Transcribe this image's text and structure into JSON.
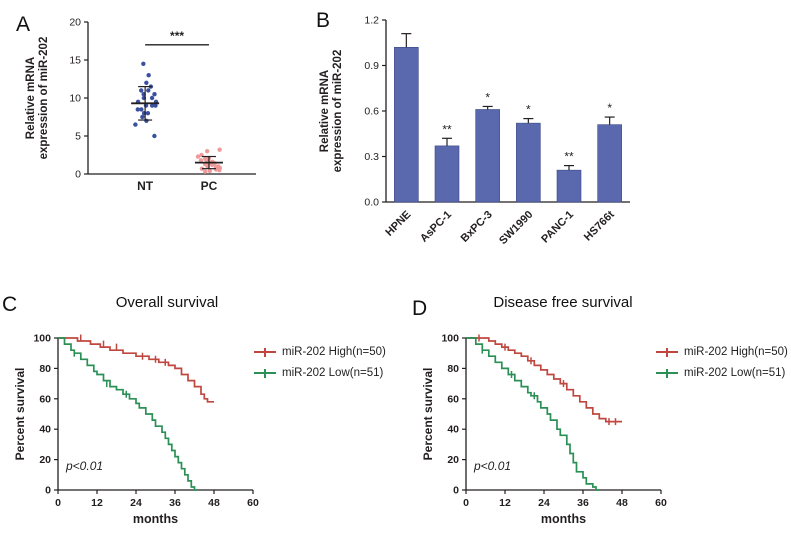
{
  "panels": {
    "a": "A",
    "b": "B",
    "c": "C",
    "d": "D"
  },
  "colors": {
    "axis": "#231f20"
  },
  "chart_data": [
    {
      "id": "panel_a",
      "type": "scatter",
      "ylabel_lines": [
        "Relative mRNA",
        "expression of miR-202"
      ],
      "ylim": [
        0,
        20
      ],
      "yticks": [
        0,
        5,
        10,
        15,
        20
      ],
      "groups": [
        {
          "name": "NT",
          "color": "#3a50a0",
          "mean": 9.3,
          "sd": 2.2,
          "values": [
            5,
            6.5,
            7,
            7.5,
            8,
            8,
            8.5,
            8.5,
            9,
            9,
            9,
            9.5,
            9.5,
            10,
            10,
            10.5,
            10.5,
            11,
            11,
            11.5,
            12,
            13,
            14.5
          ]
        },
        {
          "name": "PC",
          "color": "#ef9a9a",
          "mean": 1.5,
          "sd": 0.8,
          "values": [
            0.3,
            0.4,
            0.5,
            0.6,
            0.7,
            0.8,
            0.9,
            1,
            1,
            1.1,
            1.2,
            1.3,
            1.4,
            1.5,
            1.6,
            1.7,
            1.8,
            2,
            2.1,
            2.3,
            2.5,
            3,
            3.2
          ]
        }
      ],
      "significance": {
        "label": "***",
        "y": 17
      }
    },
    {
      "id": "panel_b",
      "type": "bar",
      "ylabel_lines": [
        "Relative mRNA",
        "expression of miR-202"
      ],
      "ylim": [
        0,
        1.2
      ],
      "yticks": [
        0,
        0.3,
        0.6,
        0.9,
        1.2
      ],
      "categories": [
        "HPNE",
        "AsPC-1",
        "BxPC-3",
        "SW1990",
        "PANC-1",
        "HS766t"
      ],
      "values": [
        1.02,
        0.37,
        0.61,
        0.52,
        0.21,
        0.51
      ],
      "errors": [
        0.09,
        0.05,
        0.02,
        0.03,
        0.03,
        0.05
      ],
      "sig_labels": [
        "",
        "**",
        "*",
        "*",
        "**",
        "*"
      ],
      "bar_color": "#5a68ae"
    },
    {
      "id": "panel_c",
      "type": "km",
      "title": "Overall survival",
      "ylabel": "Percent survival",
      "xlabel": "months",
      "annotation": "p<0.01",
      "xlim": [
        0,
        60
      ],
      "xticks": [
        0,
        12,
        24,
        36,
        48,
        60
      ],
      "ylim": [
        0,
        100
      ],
      "yticks": [
        0,
        20,
        40,
        60,
        80,
        100
      ],
      "series": [
        {
          "name": "miR-202 High(n=50)",
          "color": "#c0473f",
          "points": [
            [
              0,
              100
            ],
            [
              6,
              100
            ],
            [
              6,
              98
            ],
            [
              10,
              98
            ],
            [
              10,
              96
            ],
            [
              13,
              96
            ],
            [
              13,
              94
            ],
            [
              16,
              94
            ],
            [
              16,
              92
            ],
            [
              20,
              92
            ],
            [
              20,
              90
            ],
            [
              24,
              90
            ],
            [
              24,
              88
            ],
            [
              28,
              88
            ],
            [
              28,
              86
            ],
            [
              31,
              86
            ],
            [
              31,
              84
            ],
            [
              34,
              84
            ],
            [
              34,
              82
            ],
            [
              36,
              82
            ],
            [
              36,
              80
            ],
            [
              38,
              80
            ],
            [
              38,
              76
            ],
            [
              40,
              76
            ],
            [
              40,
              72
            ],
            [
              42,
              72
            ],
            [
              42,
              68
            ],
            [
              44,
              68
            ],
            [
              44,
              63
            ],
            [
              45,
              63
            ],
            [
              45,
              60
            ],
            [
              46,
              60
            ],
            [
              46,
              58
            ],
            [
              48,
              58
            ]
          ],
          "censors": [
            [
              7,
              100
            ],
            [
              14,
              96
            ],
            [
              18,
              94
            ],
            [
              26,
              88
            ],
            [
              30,
              86
            ],
            [
              33,
              84
            ]
          ]
        },
        {
          "name": "miR-202 Low(n=51)",
          "color": "#2a9055",
          "points": [
            [
              0,
              100
            ],
            [
              2,
              100
            ],
            [
              2,
              96
            ],
            [
              4,
              96
            ],
            [
              4,
              92
            ],
            [
              5,
              92
            ],
            [
              5,
              90
            ],
            [
              7,
              90
            ],
            [
              7,
              86
            ],
            [
              9,
              86
            ],
            [
              9,
              82
            ],
            [
              11,
              82
            ],
            [
              11,
              78
            ],
            [
              12,
              78
            ],
            [
              12,
              76
            ],
            [
              14,
              76
            ],
            [
              14,
              72
            ],
            [
              16,
              72
            ],
            [
              16,
              68
            ],
            [
              18,
              68
            ],
            [
              18,
              66
            ],
            [
              20,
              66
            ],
            [
              20,
              63
            ],
            [
              22,
              63
            ],
            [
              22,
              60
            ],
            [
              24,
              60
            ],
            [
              24,
              57
            ],
            [
              25,
              57
            ],
            [
              25,
              54
            ],
            [
              27,
              54
            ],
            [
              27,
              50
            ],
            [
              29,
              50
            ],
            [
              29,
              46
            ],
            [
              30,
              46
            ],
            [
              30,
              42
            ],
            [
              32,
              42
            ],
            [
              32,
              38
            ],
            [
              33,
              38
            ],
            [
              33,
              34
            ],
            [
              34,
              34
            ],
            [
              34,
              30
            ],
            [
              35,
              30
            ],
            [
              35,
              26
            ],
            [
              36,
              26
            ],
            [
              36,
              22
            ],
            [
              37,
              22
            ],
            [
              37,
              18
            ],
            [
              38,
              18
            ],
            [
              38,
              14
            ],
            [
              39,
              14
            ],
            [
              39,
              10
            ],
            [
              40,
              10
            ],
            [
              40,
              6
            ],
            [
              41,
              6
            ],
            [
              41,
              2
            ],
            [
              42,
              2
            ],
            [
              42,
              0
            ],
            [
              43,
              0
            ]
          ],
          "censors": [
            [
              5,
              90
            ],
            [
              15,
              70
            ],
            [
              21,
              63
            ]
          ]
        }
      ]
    },
    {
      "id": "panel_d",
      "type": "km",
      "title": "Disease free survival",
      "ylabel": "Percent survival",
      "xlabel": "months",
      "annotation": "p<0.01",
      "xlim": [
        0,
        60
      ],
      "xticks": [
        0,
        12,
        24,
        36,
        48,
        60
      ],
      "ylim": [
        0,
        100
      ],
      "yticks": [
        0,
        20,
        40,
        60,
        80,
        100
      ],
      "series": [
        {
          "name": "miR-202 High(n=50)",
          "color": "#c0473f",
          "points": [
            [
              0,
              100
            ],
            [
              7,
              100
            ],
            [
              7,
              98
            ],
            [
              9,
              98
            ],
            [
              9,
              96
            ],
            [
              11,
              96
            ],
            [
              11,
              94
            ],
            [
              13,
              94
            ],
            [
              13,
              92
            ],
            [
              15,
              92
            ],
            [
              15,
              90
            ],
            [
              17,
              90
            ],
            [
              17,
              88
            ],
            [
              19,
              88
            ],
            [
              19,
              85
            ],
            [
              21,
              85
            ],
            [
              21,
              82
            ],
            [
              23,
              82
            ],
            [
              23,
              79
            ],
            [
              25,
              79
            ],
            [
              25,
              76
            ],
            [
              27,
              76
            ],
            [
              27,
              73
            ],
            [
              29,
              73
            ],
            [
              29,
              70
            ],
            [
              31,
              70
            ],
            [
              31,
              66
            ],
            [
              33,
              66
            ],
            [
              33,
              62
            ],
            [
              35,
              62
            ],
            [
              35,
              58
            ],
            [
              37,
              58
            ],
            [
              37,
              54
            ],
            [
              39,
              54
            ],
            [
              39,
              50
            ],
            [
              41,
              50
            ],
            [
              41,
              47
            ],
            [
              43,
              47
            ],
            [
              43,
              45
            ],
            [
              48,
              45
            ]
          ],
          "censors": [
            [
              4,
              100
            ],
            [
              12,
              94
            ],
            [
              20,
              85
            ],
            [
              30,
              70
            ],
            [
              44,
              45
            ],
            [
              46,
              45
            ]
          ]
        },
        {
          "name": "miR-202 Low(n=51)",
          "color": "#2a9055",
          "points": [
            [
              0,
              100
            ],
            [
              3,
              100
            ],
            [
              3,
              96
            ],
            [
              5,
              96
            ],
            [
              5,
              92
            ],
            [
              7,
              92
            ],
            [
              7,
              88
            ],
            [
              9,
              88
            ],
            [
              9,
              84
            ],
            [
              11,
              84
            ],
            [
              11,
              80
            ],
            [
              13,
              80
            ],
            [
              13,
              76
            ],
            [
              15,
              76
            ],
            [
              15,
              72
            ],
            [
              17,
              72
            ],
            [
              17,
              68
            ],
            [
              19,
              68
            ],
            [
              19,
              64
            ],
            [
              20,
              64
            ],
            [
              20,
              62
            ],
            [
              22,
              62
            ],
            [
              22,
              58
            ],
            [
              23,
              58
            ],
            [
              23,
              54
            ],
            [
              25,
              54
            ],
            [
              25,
              50
            ],
            [
              26,
              50
            ],
            [
              26,
              46
            ],
            [
              28,
              46
            ],
            [
              28,
              40
            ],
            [
              29,
              40
            ],
            [
              29,
              36
            ],
            [
              31,
              36
            ],
            [
              31,
              30
            ],
            [
              32,
              30
            ],
            [
              32,
              24
            ],
            [
              33,
              24
            ],
            [
              33,
              18
            ],
            [
              34,
              18
            ],
            [
              34,
              12
            ],
            [
              36,
              12
            ],
            [
              36,
              8
            ],
            [
              37,
              8
            ],
            [
              37,
              4
            ],
            [
              39,
              4
            ],
            [
              39,
              2
            ],
            [
              40,
              2
            ],
            [
              40,
              0
            ],
            [
              41,
              0
            ]
          ],
          "censors": [
            [
              5,
              92
            ],
            [
              14,
              76
            ],
            [
              21,
              62
            ]
          ]
        }
      ]
    }
  ]
}
